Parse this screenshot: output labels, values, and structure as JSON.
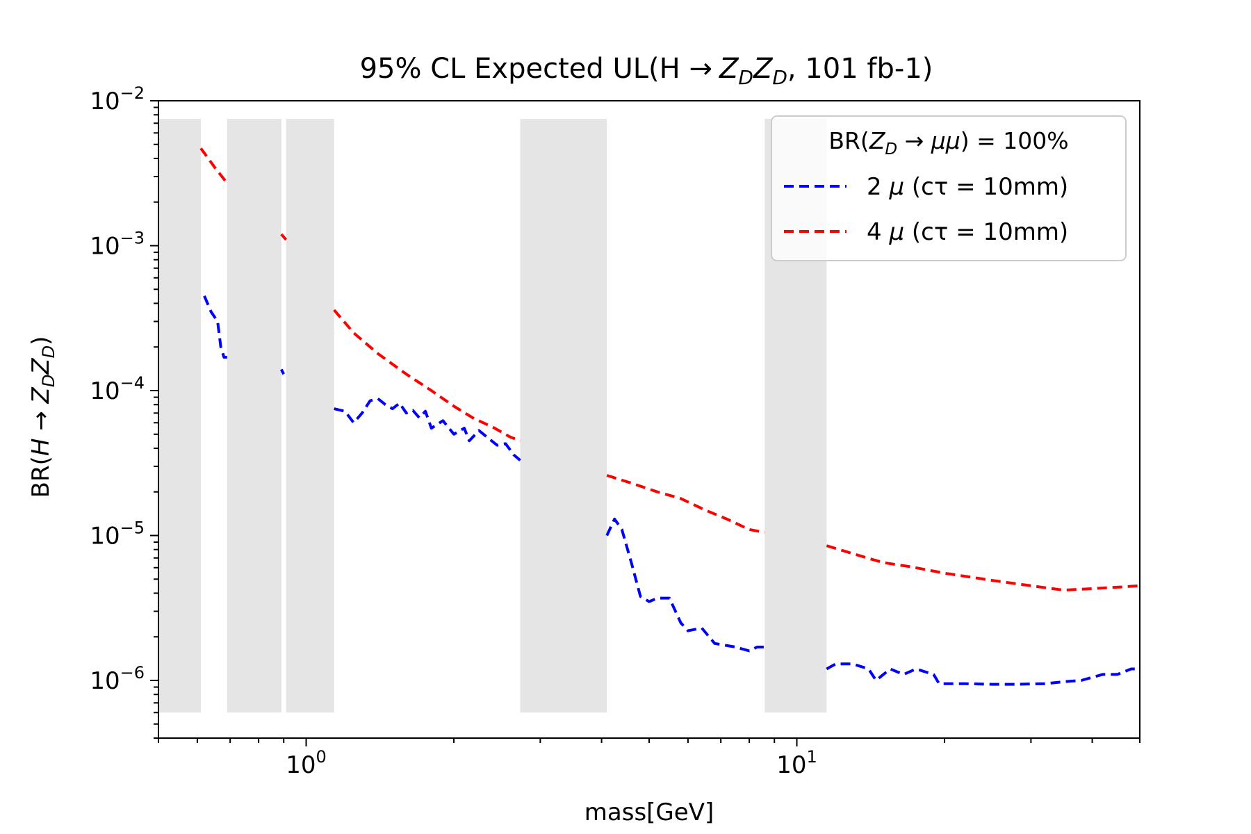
{
  "chart_data": {
    "type": "line",
    "title": "95% CL Expected UL(H → Z_D Z_D, 101 fb-1)",
    "title_parts": {
      "prefix": "95% CL Expected UL(H ",
      "arrow": "→",
      "zd1": "Z",
      "zd2": "Z",
      "sub": "D",
      "suffix": ", 101 fb-1)"
    },
    "xlabel": "mass[GeV]",
    "ylabel": "BR(H → Z_D Z_D)",
    "ylabel_parts": {
      "prefix": "BR(",
      "H": "H",
      "arrow": " → ",
      "Z": "Z",
      "sub": "D",
      "close": ")"
    },
    "x_scale": "log",
    "y_scale": "log",
    "xlim": [
      0.5,
      50
    ],
    "ylim": [
      4e-07,
      0.01
    ],
    "x_ticks": [
      {
        "value": 1,
        "base": "10",
        "exp": "0"
      },
      {
        "value": 10,
        "base": "10",
        "exp": "1"
      }
    ],
    "y_ticks": [
      {
        "value": 1e-06,
        "base": "10",
        "exp": "−6"
      },
      {
        "value": 1e-05,
        "base": "10",
        "exp": "−5"
      },
      {
        "value": 0.0001,
        "base": "10",
        "exp": "−4"
      },
      {
        "value": 0.001,
        "base": "10",
        "exp": "−3"
      },
      {
        "value": 0.01,
        "base": "10",
        "exp": "−2"
      }
    ],
    "grid": false,
    "legend": {
      "placement": "top-right",
      "title": "BR(Z_D → μμ) = 100%",
      "title_parts": {
        "prefix": "BR(",
        "Z": "Z",
        "sub": "D",
        "arrow": " → ",
        "mumu": "μμ",
        "suffix": ") = 100%"
      }
    },
    "excluded_regions": {
      "color": "#e5e5e5",
      "y_range": [
        6e-07,
        0.0075
      ],
      "x_ranges": [
        [
          0.5,
          0.61
        ],
        [
          0.69,
          0.89
        ],
        [
          0.91,
          1.14
        ],
        [
          2.73,
          4.1
        ],
        [
          8.6,
          11.5
        ]
      ]
    },
    "series": [
      {
        "name": "2 μ (cτ = 10mm)",
        "name_parts": {
          "lead": "2 ",
          "mu": "μ",
          "rest": " (cτ = 10mm)"
        },
        "color": "#0000ff",
        "style": "dashed",
        "points": [
          [
            0.62,
            0.00045
          ],
          [
            0.64,
            0.00035
          ],
          [
            0.66,
            0.0003
          ],
          [
            0.67,
            0.0002
          ],
          [
            0.68,
            0.00017
          ],
          [
            0.69,
            0.00017
          ],
          [
            0.89,
            0.00014
          ],
          [
            0.9,
            0.00013
          ],
          [
            1.14,
            7.5e-05
          ],
          [
            1.2,
            7.2e-05
          ],
          [
            1.25,
            6e-05
          ],
          [
            1.3,
            7e-05
          ],
          [
            1.35,
            8.5e-05
          ],
          [
            1.4,
            8.8e-05
          ],
          [
            1.45,
            8e-05
          ],
          [
            1.5,
            7.5e-05
          ],
          [
            1.55,
            8.2e-05
          ],
          [
            1.6,
            7e-05
          ],
          [
            1.65,
            7.3e-05
          ],
          [
            1.7,
            6.5e-05
          ],
          [
            1.75,
            7.2e-05
          ],
          [
            1.8,
            5.5e-05
          ],
          [
            1.9,
            6.2e-05
          ],
          [
            2.0,
            5e-05
          ],
          [
            2.1,
            5.5e-05
          ],
          [
            2.15,
            4.5e-05
          ],
          [
            2.25,
            5.3e-05
          ],
          [
            2.35,
            4.7e-05
          ],
          [
            2.45,
            4.2e-05
          ],
          [
            2.55,
            4.3e-05
          ],
          [
            2.65,
            3.6e-05
          ],
          [
            2.73,
            3.3e-05
          ],
          [
            4.1,
            1e-05
          ],
          [
            4.25,
            1.3e-05
          ],
          [
            4.4,
            1.1e-05
          ],
          [
            4.6,
            6.5e-06
          ],
          [
            4.8,
            3.8e-06
          ],
          [
            5.0,
            3.5e-06
          ],
          [
            5.2,
            3.7e-06
          ],
          [
            5.5,
            3.7e-06
          ],
          [
            5.8,
            2.5e-06
          ],
          [
            6.0,
            2.2e-06
          ],
          [
            6.4,
            2.3e-06
          ],
          [
            6.8,
            1.8e-06
          ],
          [
            7.5,
            1.7e-06
          ],
          [
            8.0,
            1.6e-06
          ],
          [
            8.3,
            1.7e-06
          ],
          [
            8.6,
            1.7e-06
          ],
          [
            11.5,
            1.2e-06
          ],
          [
            12.0,
            1.3e-06
          ],
          [
            13.0,
            1.3e-06
          ],
          [
            14.0,
            1.2e-06
          ],
          [
            14.5,
            1e-06
          ],
          [
            15.5,
            1.2e-06
          ],
          [
            16.5,
            1.1e-06
          ],
          [
            17.5,
            1.2e-06
          ],
          [
            19.0,
            1.1e-06
          ],
          [
            19.5,
            9.5e-07
          ],
          [
            22.0,
            9.5e-07
          ],
          [
            25.0,
            9.4e-07
          ],
          [
            28.0,
            9.4e-07
          ],
          [
            32.0,
            9.5e-07
          ],
          [
            35.0,
            9.8e-07
          ],
          [
            38.0,
            1e-06
          ],
          [
            42.0,
            1.1e-06
          ],
          [
            45.0,
            1.1e-06
          ],
          [
            48.0,
            1.2e-06
          ],
          [
            50.0,
            1.2e-06
          ]
        ]
      },
      {
        "name": "4 μ (cτ = 10mm)",
        "name_parts": {
          "lead": "4 ",
          "mu": "μ",
          "rest": " (cτ = 10mm)"
        },
        "color": "#ff0000",
        "style": "dashed",
        "points": [
          [
            0.61,
            0.0047
          ],
          [
            0.65,
            0.0035
          ],
          [
            0.69,
            0.0027
          ],
          [
            0.89,
            0.0012
          ],
          [
            0.91,
            0.0011
          ],
          [
            1.14,
            0.00036
          ],
          [
            1.25,
            0.00025
          ],
          [
            1.4,
            0.00018
          ],
          [
            1.6,
            0.00013
          ],
          [
            1.8,
            0.0001
          ],
          [
            2.0,
            7.8e-05
          ],
          [
            2.2,
            6.4e-05
          ],
          [
            2.4,
            5.6e-05
          ],
          [
            2.6,
            4.8e-05
          ],
          [
            2.73,
            4.5e-05
          ],
          [
            4.1,
            2.6e-05
          ],
          [
            4.6,
            2.3e-05
          ],
          [
            5.2,
            2e-05
          ],
          [
            5.8,
            1.8e-05
          ],
          [
            6.5,
            1.5e-05
          ],
          [
            7.2,
            1.3e-05
          ],
          [
            8.0,
            1.1e-05
          ],
          [
            8.6,
            1.05e-05
          ],
          [
            11.5,
            8.5e-06
          ],
          [
            13.0,
            7.5e-06
          ],
          [
            15.0,
            6.5e-06
          ],
          [
            17.0,
            6.1e-06
          ],
          [
            20.0,
            5.5e-06
          ],
          [
            25.0,
            4.9e-06
          ],
          [
            30.0,
            4.5e-06
          ],
          [
            35.0,
            4.2e-06
          ],
          [
            40.0,
            4.3e-06
          ],
          [
            45.0,
            4.4e-06
          ],
          [
            50.0,
            4.5e-06
          ]
        ]
      }
    ]
  }
}
